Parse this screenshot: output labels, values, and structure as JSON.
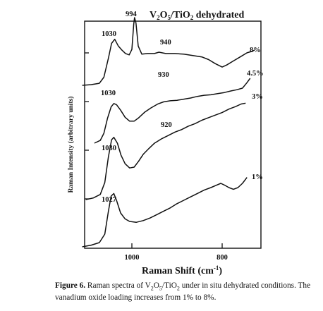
{
  "chart_data": {
    "type": "line",
    "title": "V2O5/TiO2 dehydrated",
    "xlabel": "Raman Shift (cm-1)",
    "ylabel": "Raman Intensity (arbitrary units)",
    "x_reversed": true,
    "xlim": [
      1120,
      715
    ],
    "x_ticks": [
      1000,
      800
    ],
    "grid": false,
    "legend": "none",
    "series": [
      {
        "name": "8%",
        "points": [
          [
            1110,
            0.0
          ],
          [
            1090,
            0.01
          ],
          [
            1072,
            0.03
          ],
          [
            1062,
            0.12
          ],
          [
            1052,
            0.4
          ],
          [
            1045,
            0.62
          ],
          [
            1038,
            0.68
          ],
          [
            1030,
            0.58
          ],
          [
            1022,
            0.52
          ],
          [
            1014,
            0.47
          ],
          [
            1006,
            0.45
          ],
          [
            1000,
            0.53
          ],
          [
            996,
            0.9
          ],
          [
            994,
            1.0
          ],
          [
            991,
            0.92
          ],
          [
            986,
            0.58
          ],
          [
            978,
            0.46
          ],
          [
            965,
            0.47
          ],
          [
            950,
            0.47
          ],
          [
            940,
            0.49
          ],
          [
            925,
            0.47
          ],
          [
            905,
            0.47
          ],
          [
            885,
            0.46
          ],
          [
            865,
            0.44
          ],
          [
            845,
            0.42
          ],
          [
            830,
            0.38
          ],
          [
            815,
            0.32
          ],
          [
            800,
            0.27
          ],
          [
            790,
            0.3
          ],
          [
            775,
            0.36
          ],
          [
            760,
            0.42
          ],
          [
            745,
            0.48
          ],
          [
            735,
            0.5
          ],
          [
            728,
            0.52
          ]
        ]
      },
      {
        "name": "4.5%",
        "points": [
          [
            1083,
            0.0
          ],
          [
            1070,
            0.05
          ],
          [
            1062,
            0.18
          ],
          [
            1054,
            0.45
          ],
          [
            1046,
            0.66
          ],
          [
            1040,
            0.72
          ],
          [
            1034,
            0.7
          ],
          [
            1025,
            0.6
          ],
          [
            1015,
            0.47
          ],
          [
            1005,
            0.4
          ],
          [
            995,
            0.4
          ],
          [
            985,
            0.46
          ],
          [
            972,
            0.56
          ],
          [
            958,
            0.64
          ],
          [
            943,
            0.71
          ],
          [
            930,
            0.75
          ],
          [
            915,
            0.77
          ],
          [
            900,
            0.78
          ],
          [
            885,
            0.8
          ],
          [
            870,
            0.82
          ],
          [
            855,
            0.85
          ],
          [
            840,
            0.87
          ],
          [
            825,
            0.88
          ],
          [
            810,
            0.9
          ],
          [
            795,
            0.92
          ],
          [
            780,
            0.95
          ],
          [
            768,
            0.97
          ],
          [
            755,
            1.0
          ],
          [
            745,
            1.1
          ],
          [
            738,
            1.18
          ]
        ]
      },
      {
        "name": "3%",
        "points": [
          [
            1102,
            0.0
          ],
          [
            1085,
            0.02
          ],
          [
            1070,
            0.06
          ],
          [
            1060,
            0.2
          ],
          [
            1052,
            0.5
          ],
          [
            1045,
            0.7
          ],
          [
            1040,
            0.73
          ],
          [
            1032,
            0.66
          ],
          [
            1024,
            0.52
          ],
          [
            1015,
            0.42
          ],
          [
            1005,
            0.37
          ],
          [
            995,
            0.38
          ],
          [
            985,
            0.45
          ],
          [
            975,
            0.53
          ],
          [
            962,
            0.6
          ],
          [
            950,
            0.66
          ],
          [
            935,
            0.71
          ],
          [
            920,
            0.75
          ],
          [
            905,
            0.79
          ],
          [
            890,
            0.82
          ],
          [
            875,
            0.86
          ],
          [
            860,
            0.89
          ],
          [
            845,
            0.93
          ],
          [
            830,
            0.96
          ],
          [
            815,
            0.99
          ],
          [
            800,
            1.02
          ],
          [
            785,
            1.06
          ],
          [
            770,
            1.09
          ],
          [
            758,
            1.12
          ],
          [
            748,
            1.13
          ]
        ]
      },
      {
        "name": "1%",
        "points": [
          [
            1110,
            0.0
          ],
          [
            1090,
            0.02
          ],
          [
            1072,
            0.05
          ],
          [
            1060,
            0.15
          ],
          [
            1052,
            0.42
          ],
          [
            1046,
            0.6
          ],
          [
            1040,
            0.63
          ],
          [
            1034,
            0.55
          ],
          [
            1025,
            0.4
          ],
          [
            1015,
            0.33
          ],
          [
            1005,
            0.3
          ],
          [
            990,
            0.29
          ],
          [
            975,
            0.31
          ],
          [
            960,
            0.34
          ],
          [
            945,
            0.38
          ],
          [
            930,
            0.42
          ],
          [
            915,
            0.46
          ],
          [
            900,
            0.51
          ],
          [
            885,
            0.55
          ],
          [
            870,
            0.59
          ],
          [
            855,
            0.63
          ],
          [
            840,
            0.67
          ],
          [
            825,
            0.7
          ],
          [
            812,
            0.73
          ],
          [
            803,
            0.75
          ],
          [
            795,
            0.73
          ],
          [
            785,
            0.7
          ],
          [
            775,
            0.68
          ],
          [
            765,
            0.7
          ],
          [
            755,
            0.75
          ],
          [
            745,
            0.82
          ]
        ]
      }
    ],
    "annotations": [
      {
        "text": "994",
        "x": 994,
        "series": "8%"
      },
      {
        "text": "1030",
        "x": 1030,
        "series": "8%"
      },
      {
        "text": "940",
        "x": 940,
        "series": "8%"
      },
      {
        "text": "930",
        "x": 930,
        "series": "4.5%"
      },
      {
        "text": "1030",
        "x": 1030,
        "series": "3%"
      },
      {
        "text": "920",
        "x": 920,
        "series": "3%"
      },
      {
        "text": "1030",
        "x": 1030,
        "series": "1%"
      },
      {
        "text": "1027",
        "x": 1027,
        "series": "1%"
      }
    ]
  },
  "figure": {
    "title_main": "V",
    "title_sub1": "2",
    "title_mid1": "O",
    "title_sub2": "5",
    "title_mid2": "/TiO",
    "title_sub3": "2",
    "title_end": " dehydrated",
    "xlabel_main": "Raman Shift (cm",
    "xlabel_sup": "-1",
    "xlabel_end": ")",
    "ylabel": "Raman Intensity (arbitrary units)",
    "tick_1000": "1000",
    "tick_800": "800",
    "label_8": "8%",
    "label_45": "4.5%",
    "label_3": "3%",
    "label_1": "1%",
    "ann_994": "994",
    "ann_1030_a": "1030",
    "ann_940": "940",
    "ann_930": "930",
    "ann_1030_b": "1030",
    "ann_920": "920",
    "ann_1030_c": "1030",
    "ann_1027": "1027"
  },
  "caption": {
    "label": "Figure 6.",
    "text_a": " Raman spectra of V",
    "sub_a": "2",
    "text_b": "O",
    "sub_b": "5",
    "text_c": "/TiO",
    "sub_c": "2",
    "text_d": " under in situ dehydrated conditions.  The vanadium oxide loading increases from 1% to 8%."
  }
}
